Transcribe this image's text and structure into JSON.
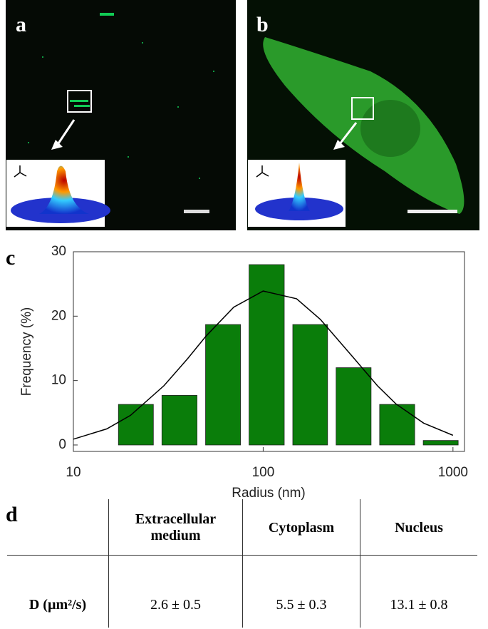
{
  "panels": {
    "a": "a",
    "b": "b",
    "c": "c",
    "d": "d"
  },
  "chart_data": {
    "type": "histogram",
    "bins": [
      16.4,
      27.8,
      47.2,
      80.0,
      136,
      230,
      390,
      662,
      1122
    ],
    "values": [
      6.3,
      7.7,
      18.7,
      28,
      18.7,
      12,
      6.3,
      0.7
    ],
    "color": "#0a7d0a",
    "fit": {
      "x": [
        10,
        15,
        20,
        30,
        40,
        50,
        70,
        100,
        150,
        200,
        300,
        400,
        500,
        700,
        1000
      ],
      "values": [
        0.9,
        2.5,
        4.6,
        9.2,
        13.4,
        16.9,
        21.4,
        23.9,
        22.7,
        19.5,
        13.5,
        9.2,
        6.4,
        3.4,
        1.5
      ],
      "color": "#000000"
    },
    "x_label": "Radius (nm)",
    "y_label": "Frequency (%)",
    "xscale": "log",
    "xlim": [
      10,
      1150
    ],
    "xticks": [
      10,
      100,
      1000
    ],
    "ylim": [
      -1,
      30
    ],
    "yticks": [
      0,
      10,
      20,
      30
    ]
  },
  "table": {
    "columns": [
      "Extracellular medium",
      "Cytoplasm",
      "Nucleus"
    ],
    "rows": [
      [
        "D (µm²/s)",
        "2.6 ± 0.5",
        "5.5 ± 0.3",
        "13.1 ± 0.8"
      ]
    ]
  }
}
